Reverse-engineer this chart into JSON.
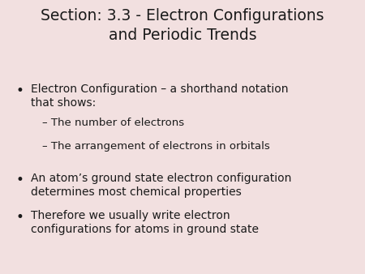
{
  "title_line1": "Section: 3.3 - Electron Configurations",
  "title_line2": "and Periodic Trends",
  "background_color": "#f2e0e0",
  "text_color": "#1a1a1a",
  "title_fontsize": 13.5,
  "body_fontsize": 10.0,
  "sub_fontsize": 9.5,
  "items": [
    {
      "type": "bullet",
      "text": "Electron Configuration – a shorthand notation\nthat shows:"
    },
    {
      "type": "sub",
      "text": "– The number of electrons"
    },
    {
      "type": "sub",
      "text": "– The arrangement of electrons in orbitals"
    },
    {
      "type": "bullet",
      "text": "An atom’s ground state electron configuration\ndetermines most chemical properties"
    },
    {
      "type": "bullet",
      "text": "Therefore we usually write electron\nconfigurations for atoms in ground state"
    }
  ]
}
